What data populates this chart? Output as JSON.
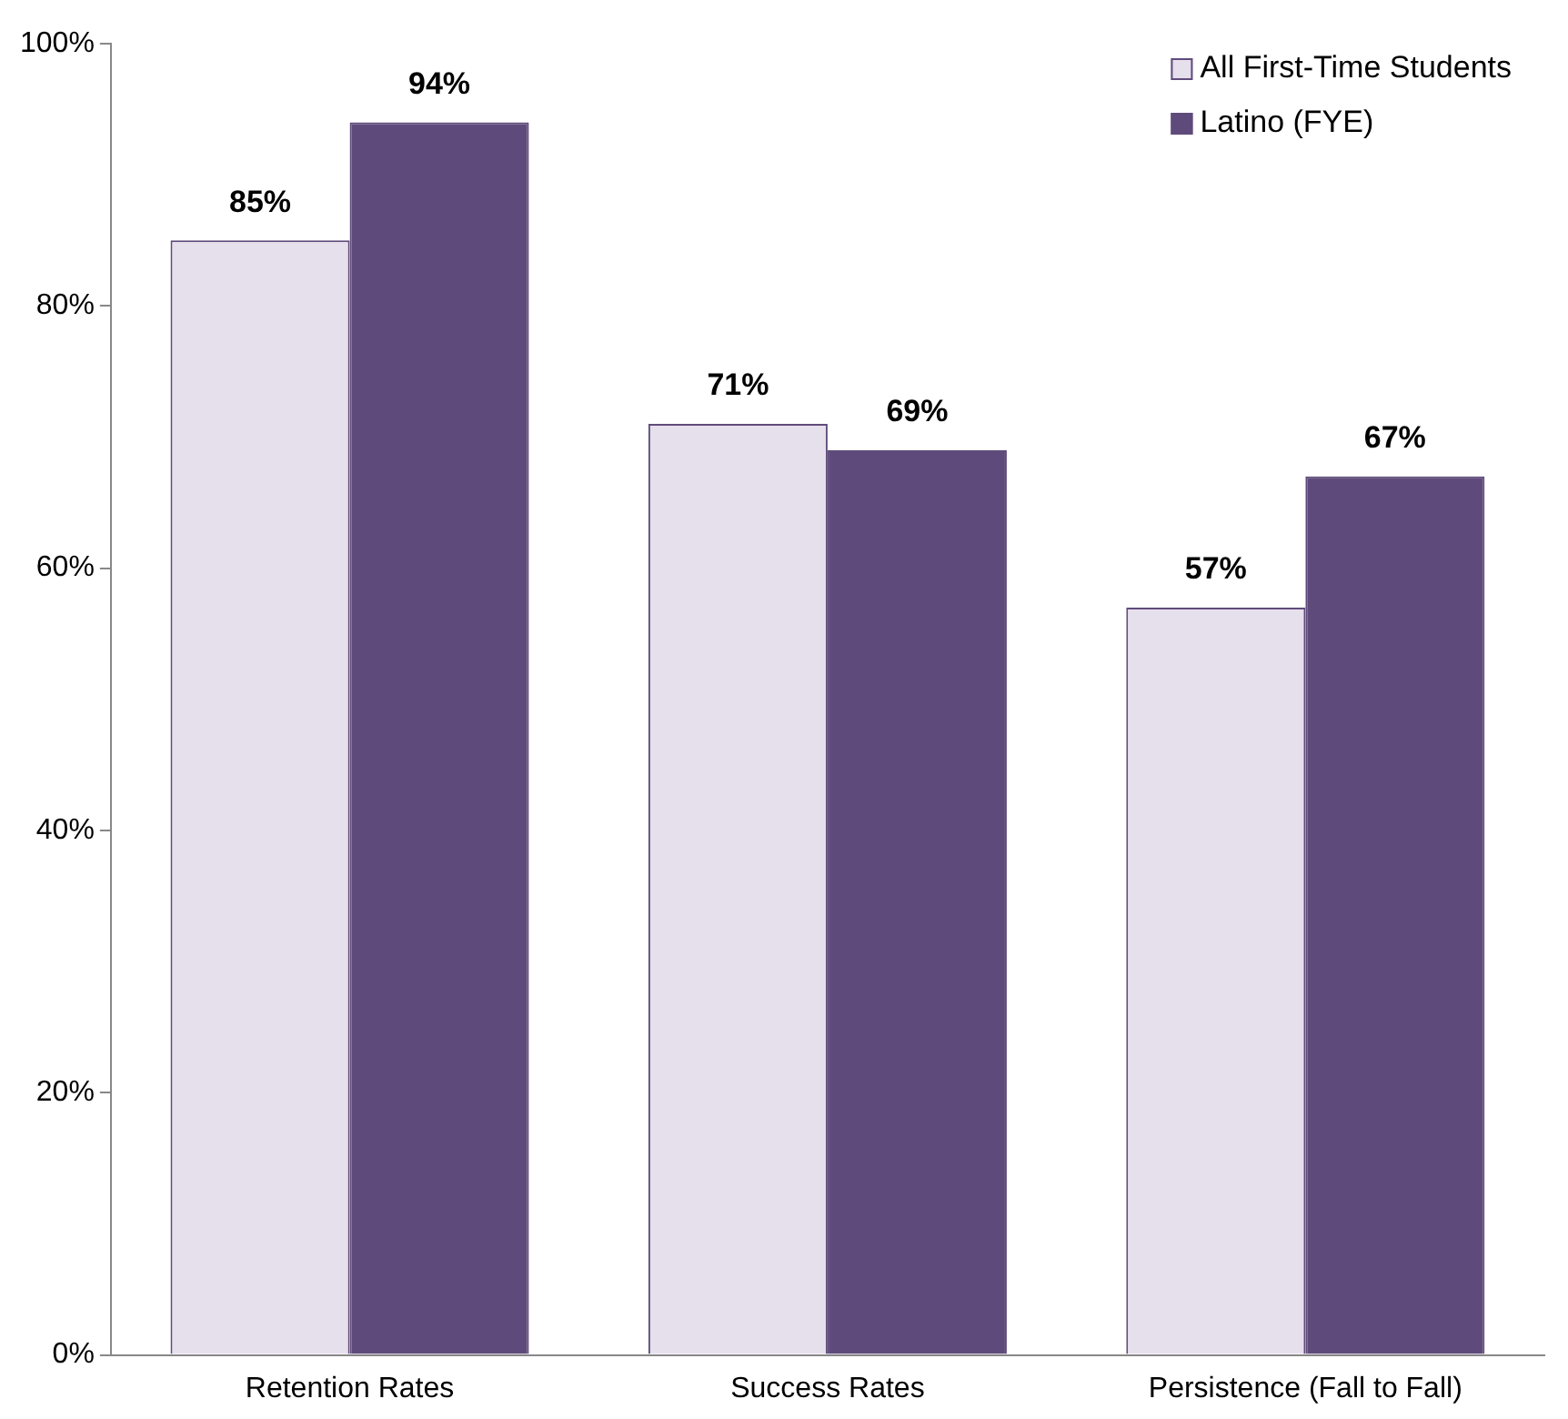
{
  "chart_data": {
    "type": "bar",
    "categories": [
      "Retention Rates",
      "Success Rates",
      "Persistence (Fall to Fall)"
    ],
    "series": [
      {
        "name": "All First-Time Students",
        "color": "#e6dfec",
        "values": [
          85,
          71,
          57
        ],
        "value_labels": [
          "85%",
          "71%",
          "57%"
        ]
      },
      {
        "name": "Latino (FYE)",
        "color": "#5f4b7b",
        "values": [
          94,
          69,
          67
        ],
        "value_labels": [
          "94%",
          "69%",
          "67%"
        ]
      }
    ],
    "ylim": [
      0,
      100
    ],
    "yticks": [
      {
        "value": 0,
        "label": "0%"
      },
      {
        "value": 20,
        "label": "20%"
      },
      {
        "value": 40,
        "label": "40%"
      },
      {
        "value": 60,
        "label": "60%"
      },
      {
        "value": 80,
        "label": "80%"
      },
      {
        "value": 100,
        "label": "100%"
      }
    ],
    "grid": false,
    "legend": "top right"
  }
}
